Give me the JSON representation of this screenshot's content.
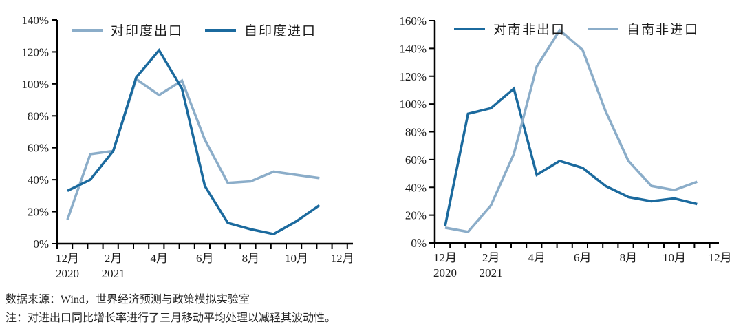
{
  "caption": {
    "source": "数据来源：Wind，世界经济预测与政策模拟实验室",
    "note": "注：对进出口同比增长率进行了三月移动平均处理以减轻其波动性。"
  },
  "chart_data": [
    {
      "type": "line",
      "title": "",
      "categories": [
        "2020-12",
        "2021-01",
        "2021-02",
        "2021-03",
        "2021-04",
        "2021-05",
        "2021-06",
        "2021-07",
        "2021-08",
        "2021-09",
        "2021-10",
        "2021-11"
      ],
      "x_tick_labels": [
        {
          "month": "12月",
          "year": "2020"
        },
        {
          "month": "2月",
          "year": "2021"
        },
        {
          "month": "4月"
        },
        {
          "month": "6月"
        },
        {
          "month": "8月"
        },
        {
          "month": "10月"
        },
        {
          "month": "12月"
        }
      ],
      "series": [
        {
          "name": "对印度出口",
          "color": "#8badc9",
          "values": [
            15,
            56,
            58,
            103,
            93,
            102,
            65,
            38,
            39,
            45,
            43,
            41
          ]
        },
        {
          "name": "自印度进口",
          "color": "#1b6a9e",
          "values": [
            33,
            40,
            58,
            104,
            121,
            97,
            36,
            13,
            9,
            6,
            14,
            24
          ]
        }
      ],
      "xlabel": "",
      "ylabel": "",
      "ylim": [
        0,
        140
      ],
      "ytick_step": 20,
      "ytick_suffix": "%",
      "grid": false,
      "legend_position": "top"
    },
    {
      "type": "line",
      "title": "",
      "categories": [
        "2020-12",
        "2021-01",
        "2021-02",
        "2021-03",
        "2021-04",
        "2021-05",
        "2021-06",
        "2021-07",
        "2021-08",
        "2021-09",
        "2021-10",
        "2021-11"
      ],
      "x_tick_labels": [
        {
          "month": "12月",
          "year": "2020"
        },
        {
          "month": "2月",
          "year": "2021"
        },
        {
          "month": "4月"
        },
        {
          "month": "6月"
        },
        {
          "month": "8月"
        },
        {
          "month": "10月"
        },
        {
          "month": "12月"
        }
      ],
      "series": [
        {
          "name": "对南非出口",
          "color": "#1b6a9e",
          "values": [
            12,
            93,
            97,
            111,
            49,
            59,
            54,
            41,
            33,
            30,
            32,
            28
          ]
        },
        {
          "name": "自南非进口",
          "color": "#8badc9",
          "values": [
            11,
            8,
            27,
            64,
            127,
            153,
            139,
            95,
            59,
            41,
            38,
            44
          ]
        }
      ],
      "xlabel": "",
      "ylabel": "",
      "ylim": [
        0,
        160
      ],
      "ytick_step": 20,
      "ytick_suffix": "%",
      "grid": false,
      "legend_position": "top"
    }
  ],
  "axis_color": "#000000"
}
